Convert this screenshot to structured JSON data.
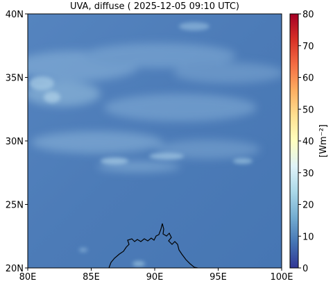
{
  "title": "UVA, diffuse ( 2025-12-05 09:10 UTC)",
  "map": {
    "lon_ticks": [
      "80E",
      "85E",
      "90E",
      "95E",
      "100E"
    ],
    "lat_ticks": [
      "20N",
      "25N",
      "30N",
      "35N",
      "40N"
    ],
    "lon_range": [
      80,
      100
    ],
    "lat_range": [
      20,
      40
    ]
  },
  "colorbar": {
    "label": "[Wm⁻²]",
    "ticks": [
      "0",
      "10",
      "20",
      "30",
      "40",
      "50",
      "60",
      "70",
      "80"
    ],
    "range": [
      0,
      80
    ],
    "colormap": "RdYlBu_r",
    "colors": [
      "#313695",
      "#4575b4",
      "#74add1",
      "#abd9e9",
      "#e0f3f8",
      "#ffffbf",
      "#fee090",
      "#fdae61",
      "#f46d43",
      "#d73027",
      "#a50026"
    ]
  },
  "field": {
    "base_value_wm2": 13,
    "base_color": "#4d7db8",
    "cloud_color": "#9cc4e0"
  }
}
